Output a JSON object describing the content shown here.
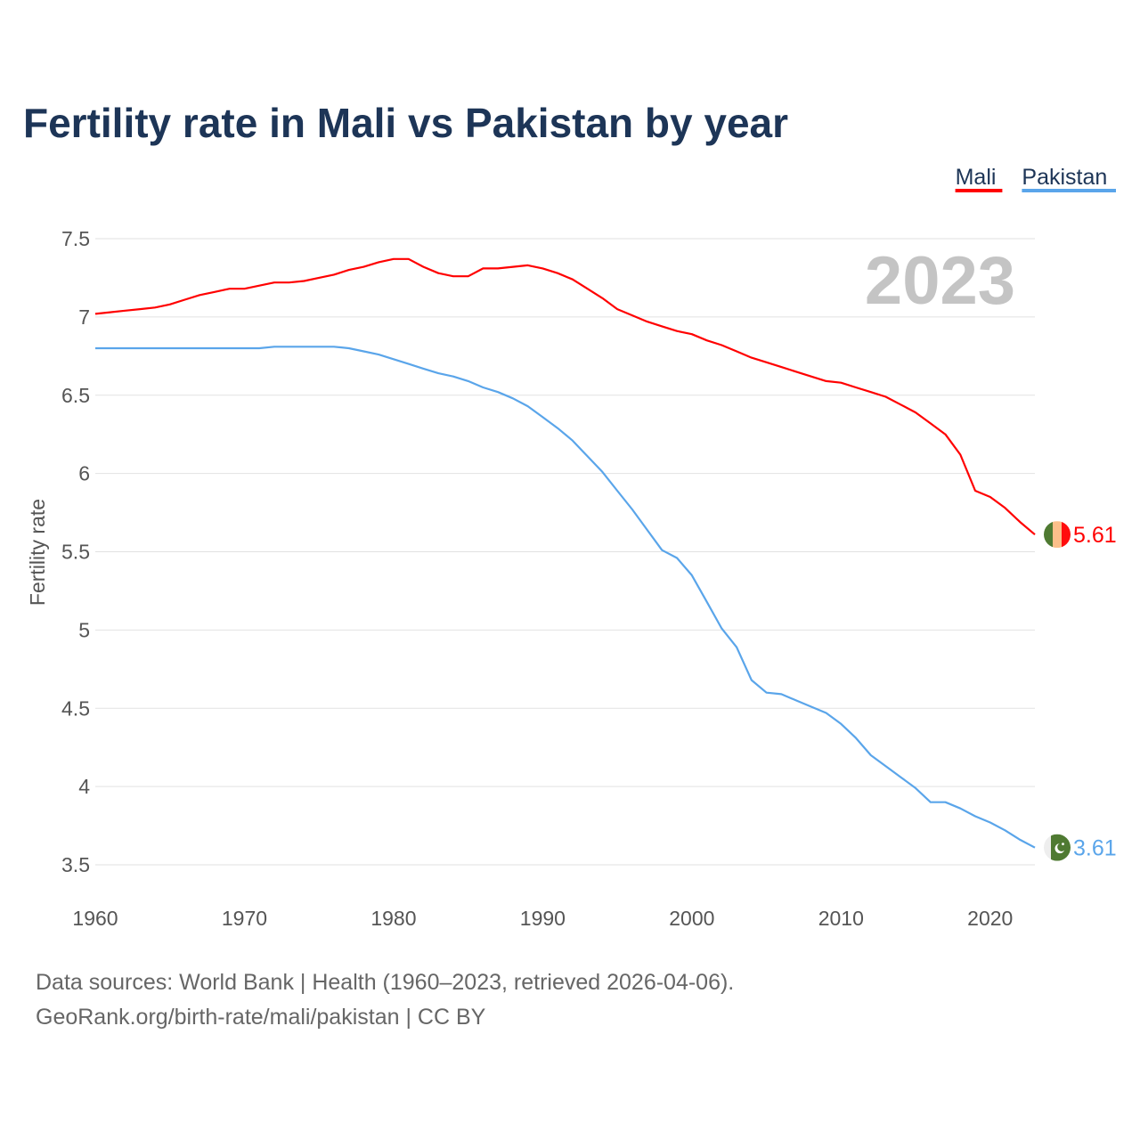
{
  "chart_data": {
    "type": "line",
    "title": "Fertility rate in Mali vs Pakistan by year",
    "xlabel": "",
    "ylabel": "Fertility rate",
    "xlim": [
      1960,
      2023
    ],
    "ylim": [
      3.5,
      7.5
    ],
    "x_ticks": [
      1960,
      1970,
      1980,
      1990,
      2000,
      2010,
      2020
    ],
    "y_ticks": [
      3.5,
      4,
      4.5,
      5,
      5.5,
      6,
      6.5,
      7,
      7.5
    ],
    "y_tick_labels": [
      "3.5",
      "4",
      "4.5",
      "5",
      "5.5",
      "6",
      "6.5",
      "7",
      "7.5"
    ],
    "grid": true,
    "legend_position": "top-right",
    "current_year": "2023",
    "x": [
      1960,
      1961,
      1962,
      1963,
      1964,
      1965,
      1966,
      1967,
      1968,
      1969,
      1970,
      1971,
      1972,
      1973,
      1974,
      1975,
      1976,
      1977,
      1978,
      1979,
      1980,
      1981,
      1982,
      1983,
      1984,
      1985,
      1986,
      1987,
      1988,
      1989,
      1990,
      1991,
      1992,
      1993,
      1994,
      1995,
      1996,
      1997,
      1998,
      1999,
      2000,
      2001,
      2002,
      2003,
      2004,
      2005,
      2006,
      2007,
      2008,
      2009,
      2010,
      2011,
      2012,
      2013,
      2014,
      2015,
      2016,
      2017,
      2018,
      2019,
      2020,
      2021,
      2022,
      2023
    ],
    "series": [
      {
        "name": "Mali",
        "color": "#ff0000",
        "end_label": "5.61",
        "values": [
          7.02,
          7.03,
          7.04,
          7.05,
          7.06,
          7.08,
          7.11,
          7.14,
          7.16,
          7.18,
          7.18,
          7.2,
          7.22,
          7.22,
          7.23,
          7.25,
          7.27,
          7.3,
          7.32,
          7.35,
          7.37,
          7.37,
          7.32,
          7.28,
          7.26,
          7.26,
          7.31,
          7.31,
          7.32,
          7.33,
          7.31,
          7.28,
          7.24,
          7.18,
          7.12,
          7.05,
          7.01,
          6.97,
          6.94,
          6.91,
          6.89,
          6.85,
          6.82,
          6.78,
          6.74,
          6.71,
          6.68,
          6.65,
          6.62,
          6.59,
          6.58,
          6.55,
          6.52,
          6.49,
          6.44,
          6.39,
          6.32,
          6.25,
          6.12,
          5.89,
          5.85,
          5.78,
          5.69,
          5.61
        ]
      },
      {
        "name": "Pakistan",
        "color": "#5aa5ea",
        "end_label": "3.61",
        "values": [
          6.8,
          6.8,
          6.8,
          6.8,
          6.8,
          6.8,
          6.8,
          6.8,
          6.8,
          6.8,
          6.8,
          6.8,
          6.81,
          6.81,
          6.81,
          6.81,
          6.81,
          6.8,
          6.78,
          6.76,
          6.73,
          6.7,
          6.67,
          6.64,
          6.62,
          6.59,
          6.55,
          6.52,
          6.48,
          6.43,
          6.36,
          6.29,
          6.21,
          6.11,
          6.01,
          5.89,
          5.77,
          5.64,
          5.51,
          5.46,
          5.35,
          5.18,
          5.01,
          4.89,
          4.68,
          4.6,
          4.59,
          4.55,
          4.51,
          4.47,
          4.4,
          4.31,
          4.2,
          4.13,
          4.06,
          3.99,
          3.9,
          3.9,
          3.86,
          3.81,
          3.77,
          3.72,
          3.66,
          3.61
        ]
      }
    ]
  },
  "footer": {
    "line1": "Data sources: World Bank | Health (1960–2023, retrieved 2026-04-06).",
    "line2": "GeoRank.org/birth-rate/mali/pakistan | CC BY"
  }
}
